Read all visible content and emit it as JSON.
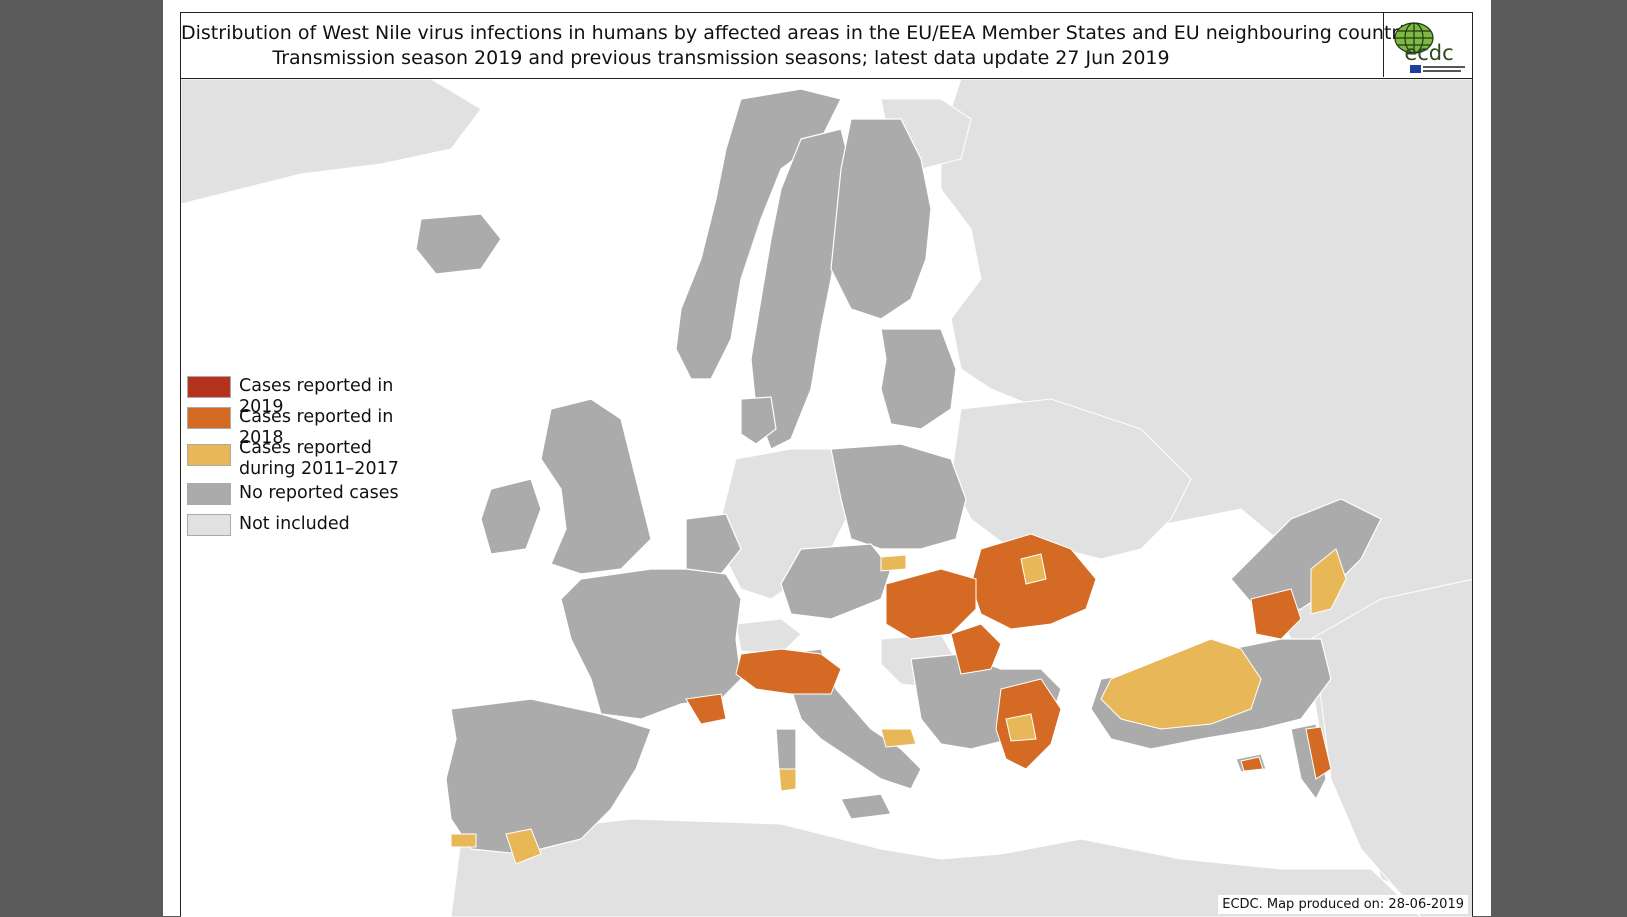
{
  "header": {
    "title_line1": "Distribution of West Nile virus infections in humans by affected areas in the EU/EEA Member States and EU neighbouring countries",
    "title_line2": "Transmission season 2019 and previous transmission seasons; latest data update 27 Jun 2019",
    "logo_text": "ecdc"
  },
  "legend": {
    "items": [
      {
        "label": "Cases reported in 2019",
        "color": "#b5321c"
      },
      {
        "label": "Cases reported in 2018",
        "color": "#d46a23"
      },
      {
        "label": "Cases reported during 2011–2017",
        "color": "#e8b858"
      },
      {
        "label": "No reported cases",
        "color": "#ababab"
      },
      {
        "label": "Not included",
        "color": "#e1e1e1"
      }
    ]
  },
  "map": {
    "colors": {
      "sea": "#ffffff",
      "not_included": "#e1e1e1",
      "no_cases": "#ababab",
      "cases_2018": "#d46a23",
      "cases_2011_2017": "#e8b858",
      "border": "#ffffff"
    }
  },
  "credit": "ECDC. Map produced on: 28-06-2019"
}
